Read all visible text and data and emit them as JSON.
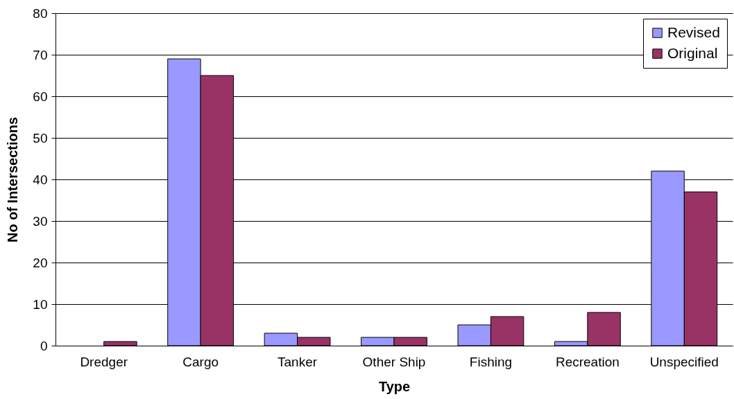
{
  "chart_data": {
    "type": "bar",
    "xlabel": "Type",
    "ylabel": "No of Intersections",
    "categories": [
      "Dredger",
      "Cargo",
      "Tanker",
      "Other Ship",
      "Fishing",
      "Recreation",
      "Unspecified"
    ],
    "series": [
      {
        "name": "Revised",
        "color": "#9999ff",
        "values": [
          null,
          69,
          3,
          2,
          5,
          1,
          42
        ]
      },
      {
        "name": "Original",
        "color": "#993366",
        "values": [
          1,
          65,
          2,
          2,
          7,
          8,
          37
        ]
      }
    ],
    "ylim": [
      0,
      80
    ],
    "yticks": [
      0,
      10,
      20,
      30,
      40,
      50,
      60,
      70,
      80
    ],
    "grid": "y",
    "legend": "top right"
  }
}
